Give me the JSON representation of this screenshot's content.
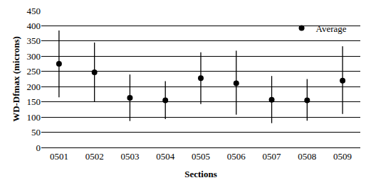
{
  "chart_data": {
    "type": "scatter",
    "x_label": "Sections",
    "y_label": "WD-Dfmax (microns)",
    "categories": [
      "0501",
      "0502",
      "0503",
      "0504",
      "0505",
      "0506",
      "0507",
      "0508",
      "0509"
    ],
    "series": [
      {
        "name": "Average",
        "color": "#000000",
        "marker": "circle",
        "values": [
          275,
          247,
          163,
          155,
          228,
          211,
          157,
          155,
          220
        ],
        "error_plus": [
          110,
          98,
          77,
          63,
          85,
          107,
          78,
          70,
          113
        ],
        "error_minus": [
          110,
          97,
          76,
          62,
          85,
          103,
          77,
          67,
          110
        ]
      }
    ],
    "ylim": [
      0,
      450
    ],
    "yticks": [
      0,
      50,
      100,
      150,
      200,
      250,
      300,
      350,
      400,
      450
    ],
    "grid": true,
    "legend": "upper right"
  }
}
